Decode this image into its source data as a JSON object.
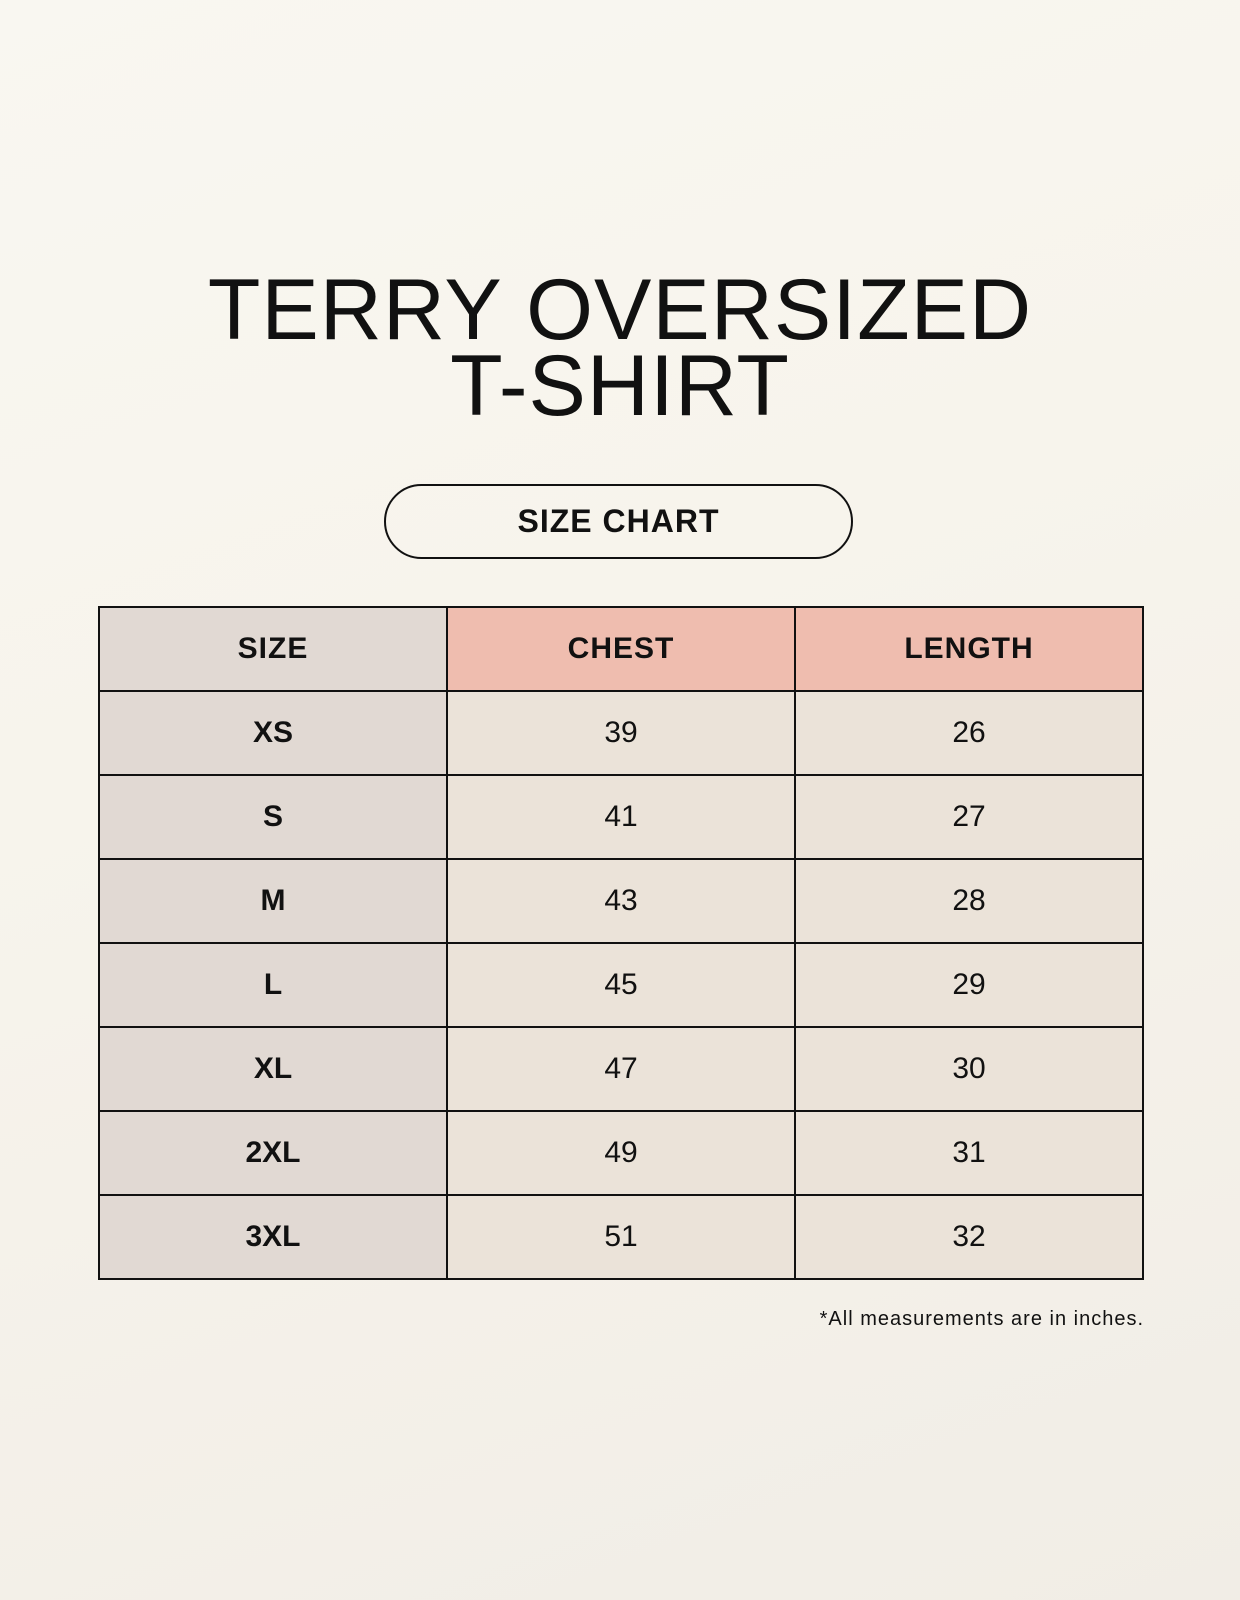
{
  "title_line1": "TERRY OVERSIZED",
  "title_line2": "T-SHIRT",
  "badge": "SIZE CHART",
  "headers": [
    "SIZE",
    "CHEST",
    "LENGTH"
  ],
  "rows": [
    [
      "XS",
      "39",
      "26"
    ],
    [
      "S",
      "41",
      "27"
    ],
    [
      "M",
      "43",
      "28"
    ],
    [
      "L",
      "45",
      "29"
    ],
    [
      "XL",
      "47",
      "30"
    ],
    [
      "2XL",
      "49",
      "31"
    ],
    [
      "3XL",
      "51",
      "32"
    ]
  ],
  "footnote": "*All measurements are in inches.",
  "colors": {
    "header_accent": "#efbdaf",
    "size_column": "#e1d9d3",
    "cell": "#ebe3d9"
  }
}
